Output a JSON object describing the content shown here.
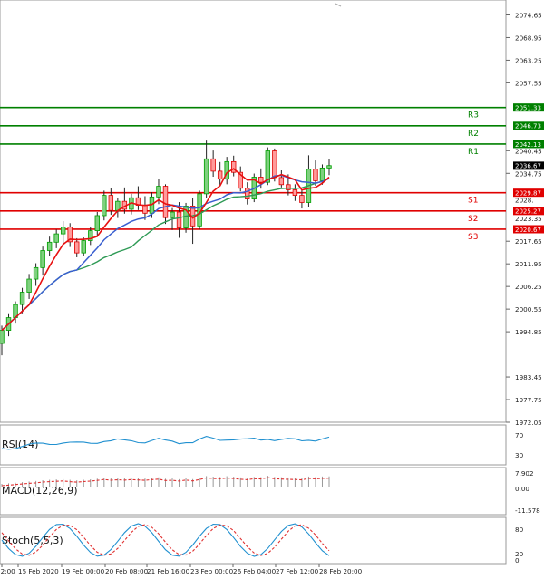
{
  "chart_data": {
    "type": "candlestick",
    "price_axis": {
      "ylim": [
        1972.05,
        2077.5
      ],
      "ticks": [
        "2074.65",
        "2068.95",
        "2063.25",
        "2057.55",
        "2040.45",
        "2034.75",
        "2017.65",
        "2011.95",
        "2006.25",
        "2000.55",
        "1994.85",
        "1983.45",
        "1977.75",
        "1972.05"
      ]
    },
    "x_axis": {
      "ticks": [
        "12:00",
        "15 Feb 2020",
        "19 Feb 00:00",
        "20 Feb 08:00",
        "21 Feb 16:00",
        "23 Feb 00:00",
        "26 Feb 04:00",
        "27 Feb 12:00",
        "28 Feb 20:00"
      ]
    },
    "levels": [
      {
        "name": "R3",
        "price": 2051.33,
        "price_label": "2051.33",
        "color": "#008000"
      },
      {
        "name": "R2",
        "price": 2046.73,
        "price_label": "2046.73",
        "color": "#008000"
      },
      {
        "name": "R1",
        "price": 2042.13,
        "price_label": "2042.13",
        "color": "#008000"
      },
      {
        "name": "S1",
        "price": 2029.87,
        "price_label": "2029.87",
        "color": "#e00000"
      },
      {
        "name": "S2",
        "price": 2025.27,
        "price_label": "2025.27",
        "color": "#e00000"
      },
      {
        "name": "S3",
        "price": 2020.67,
        "price_label": "2020.67",
        "color": "#e00000"
      }
    ],
    "current_price": {
      "price": 2036.67,
      "label": "2036.67"
    },
    "hidden_labels": [
      "2028.",
      "2023.35"
    ],
    "candles": [
      [
        1991.9,
        1996.4,
        1988.9,
        1995.2
      ],
      [
        1995.2,
        1999.5,
        1993.7,
        1998.4
      ],
      [
        1998.4,
        2002.5,
        1996.9,
        2001.7
      ],
      [
        2001.7,
        2005.9,
        1999.5,
        2004.8
      ],
      [
        2004.8,
        2009.4,
        2003.1,
        2008.1
      ],
      [
        2008.1,
        2012.1,
        2006.4,
        2011.0
      ],
      [
        2011.0,
        2016.3,
        2009.0,
        2015.3
      ],
      [
        2015.3,
        2018.8,
        2013.9,
        2017.4
      ],
      [
        2017.4,
        2020.6,
        2015.9,
        2019.5
      ],
      [
        2019.5,
        2022.7,
        2017.1,
        2021.2
      ],
      [
        2021.2,
        2022.2,
        2016.2,
        2017.5
      ],
      [
        2017.5,
        2018.4,
        2013.6,
        2014.7
      ],
      [
        2014.7,
        2018.6,
        2013.9,
        2017.8
      ],
      [
        2017.8,
        2021.2,
        2016.7,
        2020.3
      ],
      [
        2020.3,
        2025.0,
        2018.8,
        2024.1
      ],
      [
        2024.1,
        2030.4,
        2022.9,
        2029.2
      ],
      [
        2029.2,
        2031.0,
        2024.3,
        2025.4
      ],
      [
        2025.4,
        2028.6,
        2023.5,
        2027.7
      ],
      [
        2027.7,
        2031.2,
        2024.6,
        2025.7
      ],
      [
        2025.7,
        2029.6,
        2024.4,
        2028.6
      ],
      [
        2028.6,
        2031.5,
        2025.5,
        2026.7
      ],
      [
        2026.7,
        2029.0,
        2023.0,
        2024.7
      ],
      [
        2024.7,
        2030.0,
        2023.5,
        2028.8
      ],
      [
        2028.8,
        2033.4,
        2027.0,
        2031.5
      ],
      [
        2031.5,
        2032.0,
        2022.0,
        2023.6
      ],
      [
        2023.6,
        2026.0,
        2020.5,
        2025.0
      ],
      [
        2025.0,
        2027.5,
        2018.5,
        2021.0
      ],
      [
        2021.0,
        2027.3,
        2019.8,
        2026.5
      ],
      [
        2026.5,
        2028.6,
        2017.0,
        2021.5
      ],
      [
        2021.5,
        2030.4,
        2020.6,
        2029.6
      ],
      [
        2029.6,
        2043.0,
        2028.5,
        2038.4
      ],
      [
        2038.4,
        2040.5,
        2033.9,
        2035.3
      ],
      [
        2035.3,
        2037.6,
        2031.8,
        2033.3
      ],
      [
        2033.3,
        2038.9,
        2032.0,
        2037.7
      ],
      [
        2037.7,
        2039.2,
        2034.0,
        2035.0
      ],
      [
        2035.0,
        2036.5,
        2030.2,
        2031.0
      ],
      [
        2031.0,
        2032.5,
        2026.9,
        2028.3
      ],
      [
        2028.3,
        2034.7,
        2027.5,
        2033.8
      ],
      [
        2033.8,
        2036.0,
        2030.9,
        2032.5
      ],
      [
        2032.5,
        2041.3,
        2031.8,
        2040.4
      ],
      [
        2040.4,
        2041.0,
        2032.7,
        2033.7
      ],
      [
        2033.7,
        2035.5,
        2031.2,
        2031.9
      ],
      [
        2031.9,
        2034.5,
        2029.2,
        2030.6
      ],
      [
        2030.6,
        2032.0,
        2027.8,
        2029.2
      ],
      [
        2029.2,
        2030.6,
        2025.9,
        2027.4
      ],
      [
        2027.4,
        2039.3,
        2026.2,
        2035.8
      ],
      [
        2035.8,
        2038.0,
        2031.6,
        2032.9
      ],
      [
        2032.9,
        2037.0,
        2031.9,
        2036.1
      ],
      [
        2036.1,
        2038.4,
        2034.3,
        2036.7
      ]
    ],
    "indicators": [
      {
        "name": "RSI(14)",
        "ticks": [
          "70",
          "30"
        ],
        "ylim": [
          0,
          100
        ]
      },
      {
        "name": "MACD(12,26,9)",
        "ticks": [
          "7.902",
          "0.00",
          "-11.578"
        ],
        "ylim": [
          -11.578,
          7.902
        ]
      },
      {
        "name": "Stoch(5,5,3)",
        "ticks": [
          "80",
          "20",
          "0"
        ],
        "ylim": [
          0,
          100
        ]
      }
    ]
  },
  "colors": {
    "bull_candle": "#00a000",
    "bear_candle": "#e00000",
    "ma_fast": "#e81010",
    "ma_mid": "#3a5fd0",
    "ma_slow": "#2e9a55",
    "indicator_line": "#2090d0",
    "signal_line": "#e03030"
  }
}
